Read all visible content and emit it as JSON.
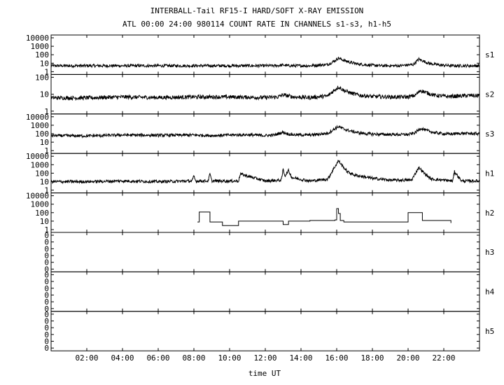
{
  "title": "INTERBALL-Tail RF15-I HARD/SOFT X-RAY EMISSION",
  "subtitle": "ATL 00:00 24:00 980114  COUNT RATE IN CHANNELS s1-s3, h1-h5",
  "chart_data": {
    "type": "line",
    "xlabel": "time UT",
    "x_ticks": [
      "02:00",
      "04:00",
      "06:00",
      "08:00",
      "10:00",
      "12:00",
      "14:00",
      "16:00",
      "18:00",
      "20:00",
      "22:00"
    ],
    "x_tick_hours": [
      2,
      4,
      6,
      8,
      10,
      12,
      14,
      16,
      18,
      20,
      22
    ],
    "xlim": [
      0,
      24
    ],
    "y_scale": "log",
    "panels": [
      {
        "name": "s1",
        "y_ticks": [
          "10000",
          "1000",
          "100",
          "10",
          "1"
        ],
        "ylim_log": [
          0,
          4
        ],
        "x": [
          0.0,
          2.0,
          4.0,
          6.0,
          8.0,
          10.0,
          12.0,
          12.5,
          13.0,
          13.3,
          13.7,
          14.5,
          15.5,
          15.9,
          16.1,
          16.4,
          16.8,
          17.2,
          17.8,
          18.5,
          19.5,
          20.3,
          20.6,
          20.8,
          21.2,
          21.8,
          22.5,
          23.2,
          24.0
        ],
        "y": [
          5,
          5,
          5,
          5,
          5,
          5,
          5,
          5,
          6,
          5,
          5,
          5,
          7,
          20,
          40,
          22,
          12,
          8,
          6,
          5,
          5,
          7,
          30,
          20,
          9,
          6,
          5,
          5,
          5
        ]
      },
      {
        "name": "s2",
        "y_ticks": [
          "100",
          "10",
          "1"
        ],
        "ylim_log": [
          0,
          3
        ],
        "x": [
          0.0,
          2.0,
          4.0,
          6.0,
          8.0,
          10.0,
          12.0,
          12.7,
          13.0,
          13.3,
          13.6,
          14.5,
          15.5,
          15.9,
          16.1,
          16.4,
          16.8,
          17.3,
          18.0,
          19.0,
          20.0,
          20.4,
          20.7,
          21.0,
          21.5,
          22.2,
          23.0,
          23.5,
          24.0
        ],
        "y": [
          15,
          15,
          18,
          16,
          18,
          18,
          16,
          18,
          28,
          22,
          18,
          16,
          22,
          80,
          140,
          70,
          40,
          25,
          20,
          18,
          18,
          25,
          70,
          45,
          25,
          20,
          22,
          25,
          22
        ]
      },
      {
        "name": "s3",
        "y_ticks": [
          "10000",
          "1000",
          "100",
          "10",
          "1"
        ],
        "ylim_log": [
          0,
          4
        ],
        "x": [
          0.0,
          2.0,
          4.0,
          6.0,
          8.0,
          9.0,
          10.0,
          11.0,
          12.0,
          12.5,
          13.0,
          13.3,
          13.6,
          14.5,
          15.5,
          15.9,
          16.1,
          16.4,
          16.8,
          17.3,
          18.0,
          19.0,
          20.0,
          20.4,
          20.7,
          21.0,
          21.5,
          22.2,
          23.0,
          24.0
        ],
        "y": [
          60,
          55,
          70,
          65,
          70,
          60,
          70,
          75,
          60,
          70,
          150,
          90,
          75,
          70,
          110,
          400,
          700,
          350,
          200,
          120,
          90,
          80,
          80,
          130,
          450,
          250,
          130,
          90,
          110,
          100
        ]
      },
      {
        "name": "h1",
        "y_ticks": [
          "10000",
          "1000",
          "100",
          "10",
          "1"
        ],
        "ylim_log": [
          0,
          4
        ],
        "x": [
          0.0,
          2.0,
          4.0,
          6.0,
          7.9,
          8.0,
          8.1,
          8.8,
          8.9,
          9.0,
          10.0,
          10.5,
          10.6,
          12.0,
          12.9,
          13.0,
          13.1,
          13.3,
          13.5,
          14.5,
          15.5,
          15.9,
          16.1,
          16.3,
          16.6,
          17.0,
          18.0,
          19.0,
          20.2,
          20.6,
          20.9,
          21.3,
          22.0,
          22.5,
          22.6,
          23.0,
          24.0
        ],
        "y": [
          10,
          10,
          12,
          10,
          12,
          45,
          12,
          12,
          80,
          12,
          12,
          12,
          80,
          12,
          15,
          300,
          50,
          200,
          30,
          12,
          20,
          600,
          3000,
          800,
          150,
          60,
          25,
          15,
          15,
          500,
          100,
          20,
          15,
          12,
          150,
          12,
          12
        ]
      },
      {
        "name": "h2",
        "y_ticks": [
          "10000",
          "1000",
          "100",
          "10",
          "1"
        ],
        "ylim_log": [
          0,
          4
        ],
        "x": [
          8.2,
          8.3,
          8.9,
          9.6,
          10.5,
          12.9,
          13.0,
          13.3,
          14.5,
          15.9,
          16.0,
          16.1,
          16.2,
          16.4,
          18.0,
          20.0,
          20.6,
          20.8,
          21.5,
          22.4
        ],
        "y": [
          8,
          120,
          8,
          3,
          10,
          10,
          4,
          10,
          12,
          14,
          300,
          80,
          12,
          8,
          8,
          100,
          100,
          12,
          12,
          6
        ]
      },
      {
        "name": "h3",
        "y_ticks": [
          "0",
          "0",
          "0",
          "0",
          "0",
          "0"
        ],
        "ylim_log": [
          0,
          4
        ],
        "x": [],
        "y": []
      },
      {
        "name": "h4",
        "y_ticks": [
          "0",
          "0",
          "0",
          "0",
          "0",
          "0"
        ],
        "ylim_log": [
          0,
          4
        ],
        "x": [],
        "y": []
      },
      {
        "name": "h5",
        "y_ticks": [
          "0",
          "0",
          "0",
          "0",
          "0",
          "0"
        ],
        "ylim_log": [
          0,
          4
        ],
        "x": [],
        "y": []
      }
    ]
  }
}
